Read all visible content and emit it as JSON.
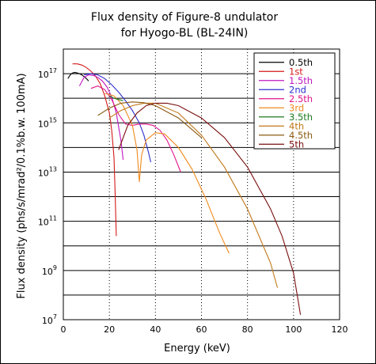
{
  "chart_data": {
    "type": "line",
    "title": [
      "Flux density of Figure-8 undulator",
      "for Hyogo-BL (BL-24IN)"
    ],
    "xlabel": "Energy (keV)",
    "ylabel": "Flux density (phs/s/mrad²/0.1%b.w. 100mA)",
    "x_ticks": [
      "0",
      "20",
      "40",
      "60",
      "80",
      "100",
      "120"
    ],
    "xlim": [
      0,
      120
    ],
    "ylim_log10": [
      7,
      18
    ],
    "y_tick_exponents": [
      7,
      9,
      11,
      13,
      15,
      17
    ],
    "grid": "y-solid, x-dotted",
    "legend_position": "top-right",
    "series": [
      {
        "name": "0.5th",
        "color": "#000000",
        "x": [
          2,
          3,
          4,
          5,
          6,
          7,
          8,
          9,
          10,
          11
        ],
        "y_log10": [
          16.8,
          16.95,
          17.03,
          17.05,
          17.03,
          17.0,
          16.95,
          16.88,
          16.8,
          16.7
        ]
      },
      {
        "name": "1st",
        "color": "#d41a1a",
        "x": [
          4,
          6,
          8,
          10,
          12,
          14,
          16,
          18,
          20,
          21,
          22,
          22.5,
          23
        ],
        "y_log10": [
          17.4,
          17.4,
          17.35,
          17.25,
          17.1,
          16.9,
          16.6,
          16.1,
          15.4,
          14.7,
          13.6,
          12.2,
          10.4
        ]
      },
      {
        "name": "1.5th",
        "color": "#c016c0",
        "x": [
          7,
          9,
          11,
          13,
          15,
          17,
          19,
          21,
          23,
          25,
          26
        ],
        "y_log10": [
          16.5,
          16.85,
          16.95,
          16.93,
          16.85,
          16.7,
          16.45,
          16.05,
          15.4,
          14.3,
          13.5
        ]
      },
      {
        "name": "2nd",
        "color": "#2f2fcf",
        "x": [
          9,
          12,
          15,
          18,
          21,
          24,
          27,
          30,
          33,
          35,
          37,
          38
        ],
        "y_log10": [
          16.95,
          17.0,
          16.95,
          16.8,
          16.55,
          16.25,
          15.9,
          15.5,
          15.0,
          14.5,
          13.8,
          13.4
        ]
      },
      {
        "name": "2.5th",
        "color": "#e0138c",
        "x": [
          12,
          15,
          18,
          21,
          24,
          27,
          30,
          33,
          36,
          39,
          42,
          45,
          48,
          51
        ],
        "y_log10": [
          16.4,
          16.5,
          16.35,
          15.95,
          15.35,
          14.95,
          14.9,
          14.95,
          14.95,
          14.9,
          14.7,
          14.3,
          13.7,
          13.0
        ]
      },
      {
        "name": "3rd",
        "color": "#f08a1e",
        "x": [
          18,
          22,
          26,
          30,
          32,
          33,
          34,
          36,
          40,
          44,
          50,
          56,
          62,
          68,
          72
        ],
        "y_log10": [
          16.2,
          16.1,
          15.7,
          14.9,
          13.9,
          12.6,
          13.7,
          14.3,
          14.6,
          14.55,
          14.0,
          13.1,
          11.9,
          10.5,
          9.7
        ]
      },
      {
        "name": "3.5th",
        "color": "#1f7a1f",
        "x": [
          20,
          22,
          24,
          26
        ],
        "y_log10": [
          16.1,
          16.0,
          15.95,
          15.9
        ]
      },
      {
        "name": "4th",
        "color": "#c07818",
        "x": [
          20,
          25,
          30,
          35,
          40,
          50,
          60,
          70,
          80,
          90,
          93
        ],
        "y_log10": [
          15.2,
          15.5,
          15.7,
          15.8,
          15.8,
          15.4,
          14.5,
          13.2,
          11.5,
          9.3,
          8.3
        ]
      },
      {
        "name": "4.5th",
        "color": "#8a5a10",
        "x": [
          15,
          20,
          25,
          30,
          35,
          40,
          50,
          60
        ],
        "y_log10": [
          15.3,
          15.6,
          15.8,
          15.85,
          15.82,
          15.7,
          15.2,
          14.4
        ]
      },
      {
        "name": "5th",
        "color": "#7a1010",
        "x": [
          24,
          28,
          32,
          36,
          40,
          45,
          50,
          60,
          70,
          80,
          90,
          95,
          100,
          103
        ],
        "y_log10": [
          13.9,
          14.9,
          15.4,
          15.7,
          15.8,
          15.8,
          15.7,
          15.2,
          14.4,
          13.2,
          11.5,
          10.4,
          8.9,
          7.2
        ]
      }
    ]
  }
}
